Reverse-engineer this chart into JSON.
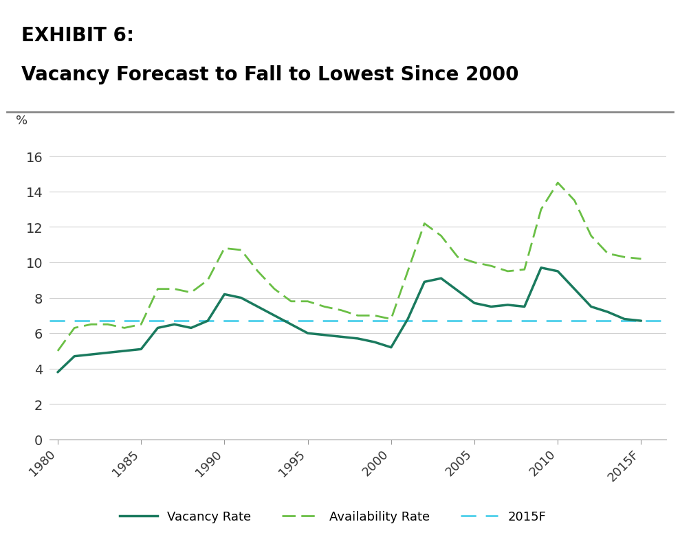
{
  "title_line1": "EXHIBIT 6:",
  "title_line2": "Vacancy Forecast to Fall to Lowest Since 2000",
  "title_bg_color": "#c8c8c8",
  "ylabel": "%",
  "ylim": [
    0,
    17
  ],
  "yticks": [
    0,
    2,
    4,
    6,
    8,
    10,
    12,
    14,
    16
  ],
  "background_color": "#ffffff",
  "plot_bg_color": "#ffffff",
  "grid_color": "#d0d0d0",
  "forecast_line_y": 6.7,
  "forecast_line_color": "#4dcfea",
  "vacancy_color": "#1a7a5e",
  "availability_color": "#6abf45",
  "years_vacancy": [
    1980,
    1981,
    1982,
    1983,
    1984,
    1985,
    1986,
    1987,
    1988,
    1989,
    1990,
    1991,
    1992,
    1993,
    1994,
    1995,
    1996,
    1997,
    1998,
    1999,
    2000,
    2001,
    2002,
    2003,
    2004,
    2005,
    2006,
    2007,
    2008,
    2009,
    2010,
    2011,
    2012,
    2013,
    2014,
    2015
  ],
  "vacancy_values": [
    3.8,
    4.7,
    4.8,
    4.9,
    5.0,
    5.1,
    6.3,
    6.5,
    6.3,
    6.7,
    8.2,
    8.0,
    7.5,
    7.0,
    6.5,
    6.0,
    5.9,
    5.8,
    5.7,
    5.5,
    5.2,
    6.8,
    8.9,
    9.1,
    8.4,
    7.7,
    7.5,
    7.6,
    7.5,
    9.7,
    9.5,
    8.5,
    7.5,
    7.2,
    6.8,
    6.7
  ],
  "years_availability": [
    1980,
    1981,
    1982,
    1983,
    1984,
    1985,
    1986,
    1987,
    1988,
    1989,
    1990,
    1991,
    1992,
    1993,
    1994,
    1995,
    1996,
    1997,
    1998,
    1999,
    2000,
    2001,
    2002,
    2003,
    2004,
    2005,
    2006,
    2007,
    2008,
    2009,
    2010,
    2011,
    2012,
    2013,
    2014,
    2015
  ],
  "availability_values": [
    5.0,
    6.3,
    6.5,
    6.5,
    6.3,
    6.5,
    8.5,
    8.5,
    8.3,
    9.0,
    10.8,
    10.7,
    9.5,
    8.5,
    7.8,
    7.8,
    7.5,
    7.3,
    7.0,
    7.0,
    6.8,
    9.5,
    12.2,
    11.5,
    10.3,
    10.0,
    9.8,
    9.5,
    9.6,
    13.0,
    14.5,
    13.5,
    11.5,
    10.5,
    10.3,
    10.2
  ],
  "xtick_labels": [
    "1980",
    "1985",
    "1990",
    "1995",
    "2000",
    "2005",
    "2010",
    "2015F"
  ],
  "xtick_values": [
    1980,
    1985,
    1990,
    1995,
    2000,
    2005,
    2010,
    2015
  ],
  "legend_labels": [
    "Vacancy Rate",
    "Availability Rate",
    "2015F"
  ]
}
